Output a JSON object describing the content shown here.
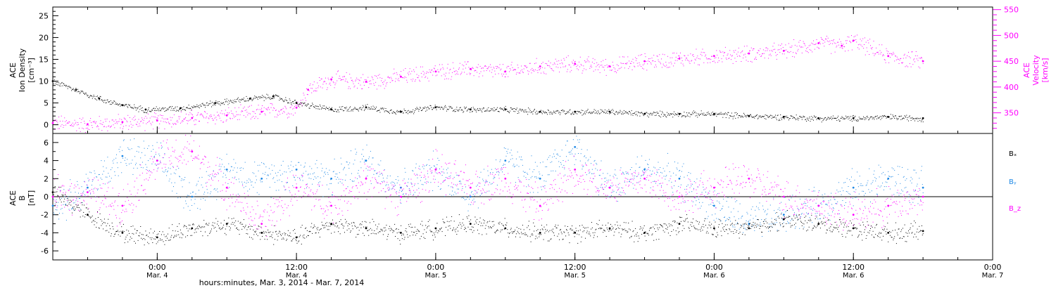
{
  "colors": {
    "axis": "#000000",
    "density": "#000000",
    "velocity": "#ff00ff",
    "bx": "#000000",
    "by": "#1e88e5",
    "bz": "#ff00ff"
  },
  "xaxis": {
    "title": "hours:minutes, Mar.  3, 2014 - Mar.  7, 2014",
    "range": [
      "2014-03-03T15:00",
      "2014-03-07T00:00"
    ],
    "ticks": [
      {
        "t": "2014-03-04T00:00",
        "time": "0:00",
        "date": "Mar. 4"
      },
      {
        "t": "2014-03-04T12:00",
        "time": "12:00",
        "date": "Mar. 4"
      },
      {
        "t": "2014-03-05T00:00",
        "time": "0:00",
        "date": "Mar. 5"
      },
      {
        "t": "2014-03-05T12:00",
        "time": "12:00",
        "date": "Mar. 5"
      },
      {
        "t": "2014-03-06T00:00",
        "time": "0:00",
        "date": "Mar. 6"
      },
      {
        "t": "2014-03-06T12:00",
        "time": "12:00",
        "date": "Mar. 6"
      },
      {
        "t": "2014-03-07T00:00",
        "time": "0:00",
        "date": "Mar. 7"
      }
    ]
  },
  "chart_data": [
    {
      "type": "scatter",
      "ylabel_left": [
        "ACE",
        "Ion Density",
        "[cm⁻³]"
      ],
      "ylabel_right": [
        "ACE",
        "Velocity",
        "[km/s]"
      ],
      "ylim_left": [
        -2,
        27
      ],
      "yticks_left": [
        0,
        5,
        10,
        15,
        20,
        25
      ],
      "ylim_right": [
        310,
        555
      ],
      "yticks_right": [
        350,
        400,
        450,
        500,
        550
      ],
      "series": [
        {
          "axis": "left",
          "color": "#000000",
          "x": [
            "2014-03-03T15:00",
            "2014-03-03T17:00",
            "2014-03-03T19:00",
            "2014-03-03T21:00",
            "2014-03-03T23:00",
            "2014-03-04T02:00",
            "2014-03-04T05:00",
            "2014-03-04T08:00",
            "2014-03-04T10:00",
            "2014-03-04T12:00",
            "2014-03-04T15:00",
            "2014-03-04T18:00",
            "2014-03-04T21:00",
            "2014-03-05T00:00",
            "2014-03-05T03:00",
            "2014-03-05T06:00",
            "2014-03-05T09:00",
            "2014-03-05T12:00",
            "2014-03-05T15:00",
            "2014-03-05T18:00",
            "2014-03-05T21:00",
            "2014-03-06T00:00",
            "2014-03-06T03:00",
            "2014-03-06T06:00",
            "2014-03-06T09:00",
            "2014-03-06T12:00",
            "2014-03-06T15:00",
            "2014-03-06T18:00"
          ],
          "y": [
            10,
            8,
            6,
            4.5,
            3.5,
            3.8,
            5,
            6,
            6.5,
            5,
            3.5,
            4,
            3,
            4,
            3.5,
            3.5,
            3,
            3,
            3,
            2.5,
            2.5,
            2.5,
            2,
            1.8,
            1.5,
            1.5,
            1.8,
            1.5
          ]
        },
        {
          "axis": "right",
          "color": "#ff00ff",
          "x": [
            "2014-03-03T15:00",
            "2014-03-03T18:00",
            "2014-03-03T21:00",
            "2014-03-04T00:00",
            "2014-03-04T03:00",
            "2014-03-04T06:00",
            "2014-03-04T09:00",
            "2014-03-04T12:00",
            "2014-03-04T13:00",
            "2014-03-04T15:00",
            "2014-03-04T18:00",
            "2014-03-04T21:00",
            "2014-03-05T00:00",
            "2014-03-05T03:00",
            "2014-03-05T06:00",
            "2014-03-05T09:00",
            "2014-03-05T12:00",
            "2014-03-05T15:00",
            "2014-03-05T18:00",
            "2014-03-05T21:00",
            "2014-03-06T00:00",
            "2014-03-06T03:00",
            "2014-03-06T06:00",
            "2014-03-06T09:00",
            "2014-03-06T11:00",
            "2014-03-06T12:00",
            "2014-03-06T15:00",
            "2014-03-06T18:00"
          ],
          "y": [
            330,
            328,
            332,
            335,
            340,
            345,
            352,
            360,
            395,
            415,
            410,
            420,
            430,
            435,
            430,
            440,
            445,
            440,
            450,
            455,
            460,
            465,
            470,
            485,
            480,
            490,
            460,
            450
          ]
        }
      ]
    },
    {
      "type": "scatter",
      "ylabel": [
        "ACE",
        "B",
        "[nT]"
      ],
      "ylim": [
        -7,
        7
      ],
      "yticks": [
        -6,
        -4,
        -2,
        0,
        2,
        4,
        6
      ],
      "zero_line": true,
      "legend": [
        "Bₓ",
        "Bᵧ",
        "B_z"
      ],
      "legend_placement": "right",
      "series": [
        {
          "name": "Bₓ",
          "color": "#000000",
          "x": [
            "2014-03-03T15:00",
            "2014-03-03T18:00",
            "2014-03-03T21:00",
            "2014-03-04T00:00",
            "2014-03-04T03:00",
            "2014-03-04T06:00",
            "2014-03-04T09:00",
            "2014-03-04T12:00",
            "2014-03-04T15:00",
            "2014-03-04T18:00",
            "2014-03-04T21:00",
            "2014-03-05T00:00",
            "2014-03-05T03:00",
            "2014-03-05T06:00",
            "2014-03-05T09:00",
            "2014-03-05T12:00",
            "2014-03-05T15:00",
            "2014-03-05T18:00",
            "2014-03-05T21:00",
            "2014-03-06T00:00",
            "2014-03-06T03:00",
            "2014-03-06T06:00",
            "2014-03-06T09:00",
            "2014-03-06T12:00",
            "2014-03-06T15:00",
            "2014-03-06T18:00"
          ],
          "y": [
            0.5,
            -2,
            -4,
            -4.5,
            -3.5,
            -3,
            -4,
            -4.5,
            -3,
            -3.5,
            -4,
            -3.5,
            -3,
            -3.5,
            -4,
            -4,
            -3.5,
            -4,
            -3,
            -3.5,
            -3.5,
            -2.5,
            -3,
            -3.5,
            -4,
            -3.8
          ]
        },
        {
          "name": "Bᵧ",
          "color": "#1e88e5",
          "x": [
            "2014-03-03T15:00",
            "2014-03-03T18:00",
            "2014-03-03T21:00",
            "2014-03-04T00:00",
            "2014-03-04T03:00",
            "2014-03-04T06:00",
            "2014-03-04T09:00",
            "2014-03-04T12:00",
            "2014-03-04T15:00",
            "2014-03-04T18:00",
            "2014-03-04T21:00",
            "2014-03-05T00:00",
            "2014-03-05T03:00",
            "2014-03-05T06:00",
            "2014-03-05T09:00",
            "2014-03-05T12:00",
            "2014-03-05T15:00",
            "2014-03-05T18:00",
            "2014-03-05T21:00",
            "2014-03-06T00:00",
            "2014-03-06T03:00",
            "2014-03-06T06:00",
            "2014-03-06T09:00",
            "2014-03-06T12:00",
            "2014-03-06T15:00",
            "2014-03-06T18:00"
          ],
          "y": [
            -1,
            1,
            4.5,
            4,
            0,
            3,
            2,
            3,
            2,
            4,
            1,
            3,
            0,
            4,
            2,
            5.5,
            1,
            3,
            2,
            -1,
            -3,
            -2,
            -1,
            1,
            2,
            1
          ]
        },
        {
          "name": "B_z",
          "color": "#ff00ff",
          "x": [
            "2014-03-03T15:00",
            "2014-03-03T18:00",
            "2014-03-03T21:00",
            "2014-03-04T00:00",
            "2014-03-04T03:00",
            "2014-03-04T06:00",
            "2014-03-04T09:00",
            "2014-03-04T12:00",
            "2014-03-04T15:00",
            "2014-03-04T18:00",
            "2014-03-04T21:00",
            "2014-03-05T00:00",
            "2014-03-05T03:00",
            "2014-03-05T06:00",
            "2014-03-05T09:00",
            "2014-03-05T12:00",
            "2014-03-05T15:00",
            "2014-03-05T18:00",
            "2014-03-05T21:00",
            "2014-03-06T00:00",
            "2014-03-06T03:00",
            "2014-03-06T06:00",
            "2014-03-06T09:00",
            "2014-03-06T12:00",
            "2014-03-06T15:00",
            "2014-03-06T18:00"
          ],
          "y": [
            0,
            0.5,
            -1,
            4,
            5,
            1,
            -3,
            1,
            -1,
            2,
            0,
            3,
            1,
            2,
            -1,
            3,
            1,
            2,
            0,
            1,
            2,
            0,
            -1,
            -2,
            -1,
            0
          ]
        }
      ]
    }
  ]
}
